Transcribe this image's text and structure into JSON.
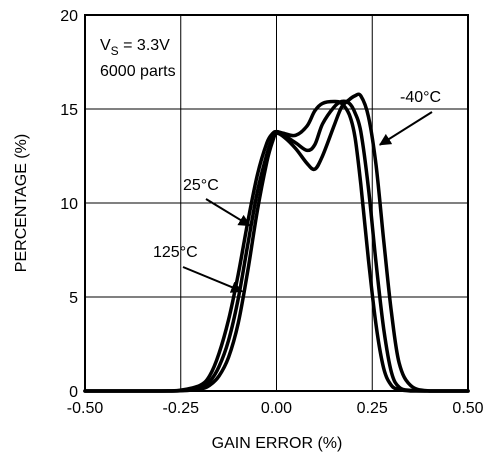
{
  "chart_data": {
    "type": "line",
    "title": "",
    "xlabel": "GAIN ERROR (%)",
    "ylabel": "PERCENTAGE (%)",
    "xlim": [
      -0.5,
      0.5
    ],
    "ylim": [
      0,
      20
    ],
    "x_ticks": [
      -0.5,
      -0.25,
      0.0,
      0.25,
      0.5
    ],
    "x_tick_labels": [
      "-0.50",
      "-0.25",
      "0.00",
      "0.25",
      "0.50"
    ],
    "y_ticks": [
      0,
      5,
      10,
      15,
      20
    ],
    "y_tick_labels": [
      "0",
      "5",
      "10",
      "15",
      "20"
    ],
    "grid": true,
    "annotation": {
      "line1_main": "V",
      "line1_sub": "S",
      "line1_rest": " = 3.3V",
      "line2": "6000 parts"
    },
    "series": [
      {
        "name": "125°C",
        "x": [
          -0.5,
          -0.3,
          -0.25,
          -0.2,
          -0.175,
          -0.15,
          -0.125,
          -0.1,
          -0.075,
          -0.05,
          -0.025,
          -0.01,
          0.0,
          0.02,
          0.05,
          0.08,
          0.1,
          0.12,
          0.15,
          0.17,
          0.19,
          0.205,
          0.22,
          0.24,
          0.26,
          0.28,
          0.3,
          0.32,
          0.35,
          0.4,
          0.5
        ],
        "y": [
          0,
          0,
          0.05,
          0.3,
          0.8,
          2.0,
          3.8,
          6.2,
          9.0,
          11.5,
          13.2,
          13.7,
          13.8,
          13.7,
          13.6,
          14.1,
          14.9,
          15.3,
          15.4,
          15.3,
          14.7,
          13.5,
          11.0,
          7.0,
          3.5,
          1.2,
          0.3,
          0.08,
          0,
          0,
          0
        ]
      },
      {
        "name": "25°C",
        "x": [
          -0.5,
          -0.3,
          -0.25,
          -0.2,
          -0.175,
          -0.15,
          -0.125,
          -0.1,
          -0.075,
          -0.05,
          -0.025,
          -0.01,
          0.0,
          0.02,
          0.05,
          0.08,
          0.1,
          0.12,
          0.15,
          0.17,
          0.19,
          0.205,
          0.22,
          0.24,
          0.26,
          0.28,
          0.3,
          0.32,
          0.35,
          0.4,
          0.5
        ],
        "y": [
          0,
          0,
          0.02,
          0.2,
          0.5,
          1.3,
          2.7,
          4.9,
          7.8,
          10.6,
          12.6,
          13.5,
          13.8,
          13.6,
          13.2,
          12.8,
          13.1,
          14.2,
          15.1,
          15.4,
          15.3,
          14.8,
          13.8,
          10.8,
          6.8,
          3.3,
          1.0,
          0.2,
          0.03,
          0,
          0
        ]
      },
      {
        "name": "-40°C",
        "x": [
          -0.5,
          -0.3,
          -0.25,
          -0.2,
          -0.175,
          -0.15,
          -0.125,
          -0.1,
          -0.075,
          -0.05,
          -0.025,
          -0.01,
          0.0,
          0.02,
          0.05,
          0.08,
          0.1,
          0.12,
          0.15,
          0.17,
          0.19,
          0.205,
          0.22,
          0.24,
          0.26,
          0.28,
          0.3,
          0.32,
          0.35,
          0.4,
          0.5
        ],
        "y": [
          0,
          0,
          0.01,
          0.1,
          0.3,
          0.8,
          1.8,
          3.6,
          6.4,
          9.6,
          12.2,
          13.3,
          13.7,
          13.5,
          12.9,
          12.1,
          11.8,
          12.5,
          14.1,
          15.1,
          15.5,
          15.7,
          15.7,
          14.6,
          12.0,
          8.0,
          4.2,
          1.5,
          0.3,
          0,
          0
        ]
      }
    ],
    "callouts": [
      {
        "label": "-40°C",
        "x": 0.27,
        "y": 13.1
      },
      {
        "label": "25°C",
        "x": -0.07,
        "y": 8.8
      },
      {
        "label": "125°C",
        "x": -0.09,
        "y": 5.3
      }
    ]
  }
}
